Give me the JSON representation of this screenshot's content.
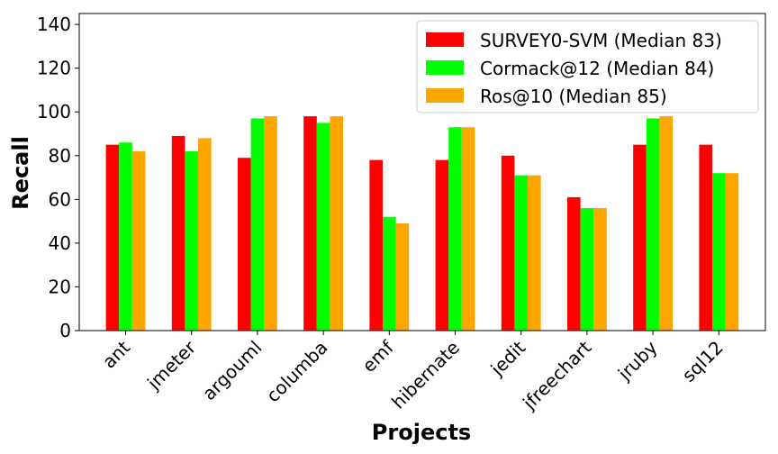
{
  "chart_data": {
    "type": "bar",
    "title": "",
    "xlabel": "Projects",
    "ylabel": "Recall",
    "ylim": [
      0,
      145
    ],
    "yticks": [
      0,
      20,
      40,
      60,
      80,
      100,
      120,
      140
    ],
    "grid": false,
    "legend_position": "top-right",
    "categories": [
      "ant",
      "jmeter",
      "argouml",
      "columba",
      "emf",
      "hibernate",
      "jedit",
      "jfreechart",
      "jruby",
      "sql12"
    ],
    "series": [
      {
        "name": "SURVEY0-SVM (Median 83)",
        "color": "#ff0000",
        "values": [
          85,
          89,
          79,
          98,
          78,
          78,
          80,
          61,
          85,
          85
        ]
      },
      {
        "name": "Cormack@12 (Median 84)",
        "color": "#00ff00",
        "values": [
          86,
          82,
          97,
          95,
          52,
          93,
          71,
          56,
          97,
          72
        ]
      },
      {
        "name": "Ros@10 (Median 85)",
        "color": "#ffa500",
        "values": [
          82,
          88,
          98,
          98,
          49,
          93,
          71,
          56,
          98,
          72
        ]
      }
    ]
  }
}
